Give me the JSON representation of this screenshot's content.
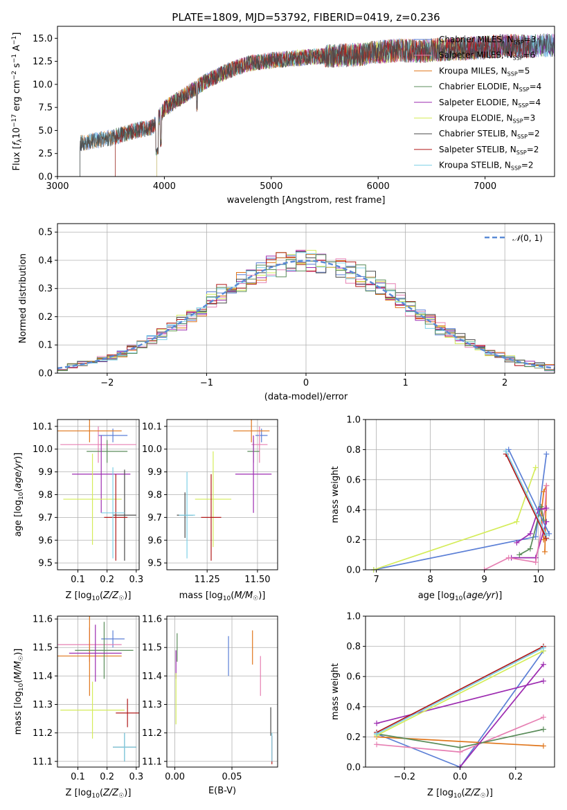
{
  "title": "PLATE=1809, MJD=53792, FIBERID=0419, z=0.236",
  "colors": [
    "#5b7fd6",
    "#e8872a",
    "#e57fb6",
    "#d6802a",
    "#5a8a5a",
    "#9030a8",
    "#d8ec60",
    "#505050",
    "#b02020",
    "#80c8dc"
  ],
  "models": [
    {
      "name": "Chabrier MILES",
      "nssp": "3",
      "color": "#5b7fd6"
    },
    {
      "name": "Salpeter MILES",
      "nssp": "6",
      "color": "#e67fb2"
    },
    {
      "name": "Kroupa MILES",
      "nssp": "5",
      "color": "#e0761c"
    },
    {
      "name": "Chabrier ELODIE",
      "nssp": "4",
      "color": "#5a8c5a"
    },
    {
      "name": "Salpeter ELODIE",
      "nssp": "4",
      "color": "#9c2ab0"
    },
    {
      "name": "Kroupa ELODIE",
      "nssp": "3",
      "color": "#d4ec58"
    },
    {
      "name": "Chabrier STELIB",
      "nssp": "2",
      "color": "#4a4a4a"
    },
    {
      "name": "Salpeter STELIB",
      "nssp": "2",
      "color": "#b01818"
    },
    {
      "name": "Kroupa STELIB",
      "nssp": "2",
      "color": "#7ccfe6"
    }
  ],
  "chart_data": [
    {
      "type": "line",
      "title": "PLATE=1809, MJD=53792, FIBERID=0419, z=0.236",
      "xlabel": "wavelength [Angstrom, rest frame]",
      "ylabel": "Flux [f_λ10^-17 erg cm^-2 s^-1 A^-1]",
      "xlim": [
        3000,
        7650
      ],
      "ylim": [
        0,
        16.3
      ],
      "xticks": [
        "3000",
        "4000",
        "5000",
        "6000",
        "7000"
      ],
      "yticks": [
        "0.0",
        "2.5",
        "5.0",
        "7.5",
        "10.0",
        "12.5",
        "15.0"
      ],
      "continuum_x": [
        3210,
        3300,
        3500,
        3700,
        3900,
        4000,
        4200,
        4400,
        4600,
        4800,
        5000,
        5200,
        5400,
        5600,
        5800,
        6000,
        6200,
        6400,
        6600,
        6800,
        7000,
        7200,
        7400,
        7650
      ],
      "continuum_y": [
        3.6,
        3.8,
        4.2,
        4.9,
        5.4,
        7.4,
        8.9,
        10.4,
        11.5,
        12.3,
        12.6,
        12.8,
        13.0,
        13.1,
        13.2,
        13.5,
        13.7,
        13.6,
        13.8,
        13.9,
        14.0,
        14.2,
        14.1,
        14.3
      ],
      "legend": "upper right"
    },
    {
      "type": "histogram",
      "xlabel": "(data-model)/error",
      "ylabel": "Normed distribution",
      "xlim": [
        -2.5,
        2.5
      ],
      "ylim": [
        0,
        0.53
      ],
      "xticks": [
        "−2",
        "−1",
        "0",
        "1",
        "2"
      ],
      "yticks": [
        "0.0",
        "0.1",
        "0.2",
        "0.3",
        "0.4",
        "0.5"
      ],
      "legend_label": "N(0,1)",
      "legend": "upper right",
      "grid": true
    },
    {
      "type": "scatter",
      "xlabel": "Z [log10(Z/Z☉)]",
      "ylabel": "age [log10(age/yr)]",
      "xlim": [
        0.03,
        0.31
      ],
      "ylim": [
        9.47,
        10.13
      ],
      "xticks": [
        "0.1",
        "0.2",
        "0.3"
      ],
      "yticks": [
        "9.5",
        "9.6",
        "9.7",
        "9.8",
        "9.9",
        "10.0",
        "10.1"
      ],
      "points": [
        {
          "x": 0.22,
          "y": 10.06,
          "ex": 0.05,
          "ey": 0.03
        },
        {
          "x": 0.17,
          "y": 10.02,
          "ex": 0.13,
          "ey": 0.08
        },
        {
          "x": 0.14,
          "y": 10.08,
          "ex": 0.11,
          "ey": 0.05
        },
        {
          "x": 0.2,
          "y": 9.99,
          "ex": 0.07,
          "ey": 0.05
        },
        {
          "x": 0.18,
          "y": 9.89,
          "ex": 0.1,
          "ey": 0.17
        },
        {
          "x": 0.15,
          "y": 9.78,
          "ex": 0.1,
          "ey": 0.2
        },
        {
          "x": 0.26,
          "y": 9.71,
          "ex": 0.04,
          "ey": 0.2
        },
        {
          "x": 0.23,
          "y": 9.7,
          "ex": 0.04,
          "ey": 0.19
        },
        {
          "x": 0.22,
          "y": 9.72,
          "ex": 0.04,
          "ey": 0.2
        }
      ]
    },
    {
      "type": "scatter",
      "xlabel": "mass [log10(M/M☉)]",
      "ylabel": "",
      "xlim": [
        11.05,
        11.6
      ],
      "ylim": [
        9.47,
        10.13
      ],
      "xticks": [
        "11.25",
        "11.50"
      ],
      "yticks": [
        "9.5",
        "9.6",
        "9.7",
        "9.8",
        "9.9",
        "10.0",
        "10.1"
      ],
      "points": [
        {
          "x": 11.52,
          "y": 10.06,
          "ex": 0.03,
          "ey": 0.03
        },
        {
          "x": 11.51,
          "y": 10.02,
          "ex": 0.04,
          "ey": 0.08
        },
        {
          "x": 11.47,
          "y": 10.08,
          "ex": 0.09,
          "ey": 0.05
        },
        {
          "x": 11.48,
          "y": 9.99,
          "ex": 0.03,
          "ey": 0.05
        },
        {
          "x": 11.48,
          "y": 9.89,
          "ex": 0.09,
          "ey": 0.17
        },
        {
          "x": 11.28,
          "y": 9.78,
          "ex": 0.09,
          "ey": 0.21
        },
        {
          "x": 11.14,
          "y": 9.71,
          "ex": 0.04,
          "ey": 0.1
        },
        {
          "x": 11.27,
          "y": 9.7,
          "ex": 0.05,
          "ey": 0.19
        },
        {
          "x": 11.15,
          "y": 9.71,
          "ex": 0.04,
          "ey": 0.19
        }
      ]
    },
    {
      "type": "line",
      "xlabel": "age [log10(age/yr)]",
      "ylabel": "mass weight",
      "xlim": [
        6.8,
        10.3
      ],
      "ylim": [
        0,
        1.0
      ],
      "xticks": [
        "7",
        "8",
        "9",
        "10"
      ],
      "yticks": [
        "0.0",
        "0.2",
        "0.4",
        "0.6",
        "0.8",
        "1.0"
      ],
      "grid": true,
      "series": [
        {
          "x": [
            6.95,
            9.95,
            10.15
          ],
          "y": [
            0.0,
            0.22,
            0.77
          ]
        },
        {
          "x": [
            10.1,
            10.05,
            10.1,
            10.15,
            10.12
          ],
          "y": [
            0.2,
            0.36,
            0.52,
            0.56,
            0.12
          ]
        },
        {
          "x": [
            9.5,
            9.95,
            10.15
          ],
          "y": [
            0.08,
            0.08,
            0.32
          ]
        },
        {
          "x": [
            9.0,
            9.45,
            9.95,
            10.12,
            10.15
          ],
          "y": [
            0.0,
            0.08,
            0.05,
            0.4,
            0.56
          ]
        },
        {
          "x": [
            9.65,
            9.85,
            10.05,
            10.1
          ],
          "y": [
            0.1,
            0.14,
            0.42,
            0.33
          ]
        },
        {
          "x": [
            9.6,
            9.85,
            10.0,
            10.15
          ],
          "y": [
            0.18,
            0.24,
            0.4,
            0.41
          ]
        },
        {
          "x": [
            6.95,
            9.6,
            9.95
          ],
          "y": [
            0.0,
            0.32,
            0.68
          ]
        },
        {
          "x": [
            9.4,
            10.15
          ],
          "y": [
            0.77,
            0.21
          ]
        },
        {
          "x": [
            9.4,
            10.15
          ],
          "y": [
            0.79,
            0.23
          ]
        },
        {
          "x": [
            9.45,
            10.2
          ],
          "y": [
            0.8,
            0.24
          ]
        }
      ]
    },
    {
      "type": "scatter",
      "xlabel": "Z [log10(Z/Z☉)]",
      "ylabel": "mass [log10(M/M☉)]",
      "xlim": [
        0.03,
        0.31
      ],
      "ylim": [
        11.08,
        11.61
      ],
      "xticks": [
        "0.1",
        "0.2",
        "0.3"
      ],
      "yticks": [
        "11.1",
        "11.2",
        "11.3",
        "11.4",
        "11.5",
        "11.6"
      ],
      "points": [
        {
          "x": 0.22,
          "y": 11.53,
          "ex": 0.04,
          "ey": 0.03
        },
        {
          "x": 0.14,
          "y": 11.51,
          "ex": 0.11,
          "ey": 0.06
        },
        {
          "x": 0.14,
          "y": 11.47,
          "ex": 0.11,
          "ey": 0.14
        },
        {
          "x": 0.19,
          "y": 11.49,
          "ex": 0.1,
          "ey": 0.1
        },
        {
          "x": 0.16,
          "y": 11.48,
          "ex": 0.09,
          "ey": 0.1
        },
        {
          "x": 0.15,
          "y": 11.28,
          "ex": 0.11,
          "ey": 0.1
        },
        {
          "x": 0.26,
          "y": 11.15,
          "ex": 0.04,
          "ey": 0.05
        },
        {
          "x": 0.27,
          "y": 11.27,
          "ex": 0.04,
          "ey": 0.05
        },
        {
          "x": 0.26,
          "y": 11.15,
          "ex": 0.04,
          "ey": 0.05
        }
      ]
    },
    {
      "type": "scatter",
      "xlabel": "E(B-V)",
      "ylabel": "",
      "xlim": [
        -0.007,
        0.09
      ],
      "ylim": [
        11.08,
        11.61
      ],
      "xticks": [
        "0.00",
        "0.05"
      ],
      "yticks": [
        "11.1",
        "11.2",
        "11.3",
        "11.4",
        "11.5",
        "11.6"
      ],
      "points": [
        {
          "x": 0.047,
          "y": 11.47,
          "ey": 0.07
        },
        {
          "x": 0.075,
          "y": 11.4,
          "ey": 0.07
        },
        {
          "x": 0.068,
          "y": 11.5,
          "ey": 0.06
        },
        {
          "x": 0.002,
          "y": 11.5,
          "ey": 0.05
        },
        {
          "x": 0.001,
          "y": 11.44,
          "ey": 0.05
        },
        {
          "x": 0.001,
          "y": 11.32,
          "ey": 0.09
        },
        {
          "x": 0.084,
          "y": 11.24,
          "ey": 0.05
        },
        {
          "x": 0.085,
          "y": 11.14,
          "ey": 0.05
        },
        {
          "x": 0.085,
          "y": 11.15,
          "ey": 0.05
        }
      ]
    },
    {
      "type": "line",
      "xlabel": "Z [log10(Z/Z☉)]",
      "ylabel": "mass weight",
      "xlim": [
        -0.34,
        0.34
      ],
      "ylim": [
        0,
        1.0
      ],
      "xticks": [
        "−0.2",
        "0.0",
        "0.2"
      ],
      "yticks": [
        "0.0",
        "0.2",
        "0.4",
        "0.6",
        "0.8",
        "1.0"
      ],
      "grid": true,
      "series": [
        {
          "x": [
            -0.3,
            0.0,
            0.3
          ],
          "y": [
            0.22,
            0.0,
            0.77
          ]
        },
        {
          "x": [
            -0.3,
            0.3
          ],
          "y": [
            0.2,
            0.14
          ]
        },
        {
          "x": [
            -0.3,
            0.3
          ],
          "y": [
            0.29,
            0.57
          ]
        },
        {
          "x": [
            -0.3,
            0.0,
            0.3
          ],
          "y": [
            0.15,
            0.1,
            0.33
          ]
        },
        {
          "x": [
            -0.3,
            0.0,
            0.3
          ],
          "y": [
            0.22,
            0.13,
            0.25
          ]
        },
        {
          "x": [
            0.0,
            0.3
          ],
          "y": [
            0.0,
            0.68
          ]
        },
        {
          "x": [
            -0.3,
            0.3
          ],
          "y": [
            0.21,
            0.77
          ]
        },
        {
          "x": [
            -0.3,
            0.3
          ],
          "y": [
            0.23,
            0.8
          ]
        },
        {
          "x": [
            -0.3,
            0.3
          ],
          "y": [
            0.22,
            0.79
          ]
        }
      ]
    }
  ]
}
